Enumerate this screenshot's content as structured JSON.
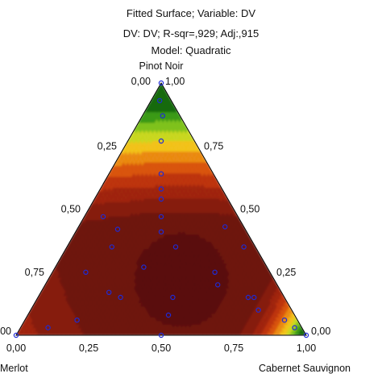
{
  "chart_data": {
    "type": "ternary-contour",
    "title_lines": [
      "Fitted Surface; Variable: DV",
      "DV: DV; R-sqr=,929; Adj:,915",
      "Model: Quadratic"
    ],
    "vertices": {
      "top": "Pinot Noir",
      "left": "Merlot",
      "right": "Cabernet Sauvignon"
    },
    "left_side_ticks": [
      {
        "label": "0,25",
        "p": 0.25
      },
      {
        "label": "0,50",
        "p": 0.5
      },
      {
        "label": "0,75",
        "p": 0.75
      }
    ],
    "right_side_ticks": [
      {
        "label": "0,75",
        "p": 0.75
      },
      {
        "label": "0,50",
        "p": 0.5
      },
      {
        "label": "0,25",
        "p": 0.25
      }
    ],
    "bottom_ticks": [
      {
        "label": "0,00",
        "c": 0.0
      },
      {
        "label": "0,25",
        "c": 0.25
      },
      {
        "label": "0,50",
        "c": 0.5
      },
      {
        "label": "0,75",
        "c": 0.75
      },
      {
        "label": "1,00",
        "c": 1.0
      }
    ],
    "corner_labels": {
      "top_left": "0,00",
      "top_right": "1,00",
      "right": "0,00",
      "left": "00"
    },
    "contour_colors": [
      "#5a0f0d",
      "#6e140f",
      "#861b11",
      "#a0250f",
      "#bd3410",
      "#d9540f",
      "#ea8a12",
      "#f2c21a",
      "#c9d820",
      "#7fc21e",
      "#3a9a16",
      "#156b10"
    ],
    "design_points": [
      {
        "pinot": 0.93,
        "cab": 0.03
      },
      {
        "pinot": 0.87,
        "cab": 0.07
      },
      {
        "pinot": 0.77,
        "cab": 0.115
      },
      {
        "pinot": 0.64,
        "cab": 0.18
      },
      {
        "pinot": 0.58,
        "cab": 0.21
      },
      {
        "pinot": 0.54,
        "cab": 0.23
      },
      {
        "pinot": 0.47,
        "cab": 0.265
      },
      {
        "pinot": 0.41,
        "cab": 0.295
      },
      {
        "pinot": 0.47,
        "cab": 0.065
      },
      {
        "pinot": 0.42,
        "cab": 0.14
      },
      {
        "pinot": 0.43,
        "cab": 0.505
      },
      {
        "pinot": 0.35,
        "cab": 0.155
      },
      {
        "pinot": 0.35,
        "cab": 0.375
      },
      {
        "pinot": 0.35,
        "cab": 0.61
      },
      {
        "pinot": 0.27,
        "cab": 0.305
      },
      {
        "pinot": 0.25,
        "cab": 0.56
      },
      {
        "pinot": 0.25,
        "cab": 0.115
      },
      {
        "pinot": 0.2,
        "cab": 0.595
      },
      {
        "pinot": 0.17,
        "cab": 0.235
      },
      {
        "pinot": 0.15,
        "cab": 0.285
      },
      {
        "pinot": 0.15,
        "cab": 0.465
      },
      {
        "pinot": 0.15,
        "cab": 0.725
      },
      {
        "pinot": 0.15,
        "cab": 0.745
      },
      {
        "pinot": 0.1,
        "cab": 0.785
      },
      {
        "pinot": 0.08,
        "cab": 0.485
      },
      {
        "pinot": 0.06,
        "cab": 0.18
      },
      {
        "pinot": 0.06,
        "cab": 0.895
      },
      {
        "pinot": 0.03,
        "cab": 0.095
      },
      {
        "pinot": 0.03,
        "cab": 0.945
      },
      {
        "pinot": 0.0,
        "cab": 0.0
      },
      {
        "pinot": 0.0,
        "cab": 0.5
      },
      {
        "pinot": 0.0,
        "cab": 1.0
      },
      {
        "pinot": 1.0,
        "cab": 0.0
      }
    ]
  }
}
